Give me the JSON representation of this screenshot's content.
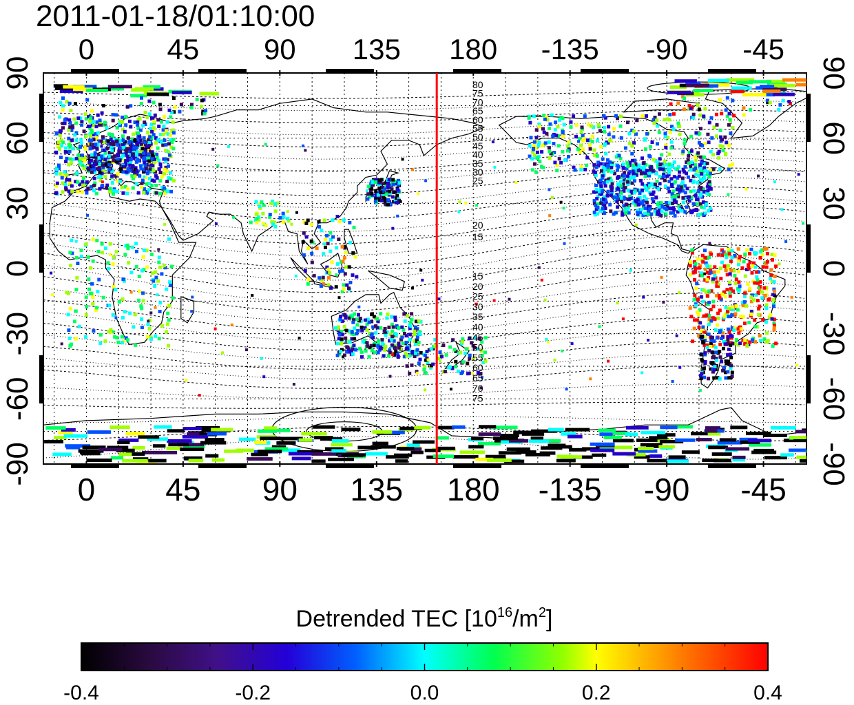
{
  "header": {
    "timestamp": "2011-01-18/01:10:00"
  },
  "map": {
    "lon_ticks": [
      "0",
      "45",
      "90",
      "135",
      "180",
      "-135",
      "-90",
      "-45"
    ],
    "lat_ticks": [
      "90",
      "60",
      "30",
      "0",
      "-30",
      "-60",
      "-90"
    ],
    "lon_tick_values": [
      0,
      45,
      90,
      135,
      180,
      225,
      270,
      315
    ],
    "lat_tick_values": [
      90,
      60,
      30,
      0,
      -30,
      -60,
      -90
    ],
    "lon_range": [
      -20,
      335
    ],
    "lat_range": [
      -90,
      90
    ],
    "marker_line": {
      "lon": 163,
      "color": "#ff0000"
    },
    "contour_labels_north": [
      "80",
      "75",
      "70",
      "65",
      "60",
      "55",
      "50",
      "45",
      "40",
      "35",
      "30",
      "25",
      "20",
      "15"
    ],
    "contour_labels_south": [
      "15",
      "20",
      "25",
      "30",
      "35",
      "40",
      "45",
      "50",
      "55",
      "60",
      "65",
      "70",
      "75"
    ]
  },
  "colorbar": {
    "title_prefix": "Detrended TEC  [10",
    "title_sup1": "16",
    "title_mid": "/m",
    "title_sup2": "2",
    "title_suffix": "]",
    "min": -0.4,
    "max": 0.4,
    "tick_labels": [
      "-0.4",
      "-0.2",
      "0.0",
      "0.2",
      "0.4"
    ],
    "tick_values": [
      -0.4,
      -0.2,
      0.0,
      0.2,
      0.4
    ],
    "colors": [
      "#000000",
      "#3a0a5a",
      "#2400c8",
      "#0050ff",
      "#00ffff",
      "#00ff60",
      "#a0ff00",
      "#ffff00",
      "#ff8000",
      "#ff0000"
    ]
  }
}
